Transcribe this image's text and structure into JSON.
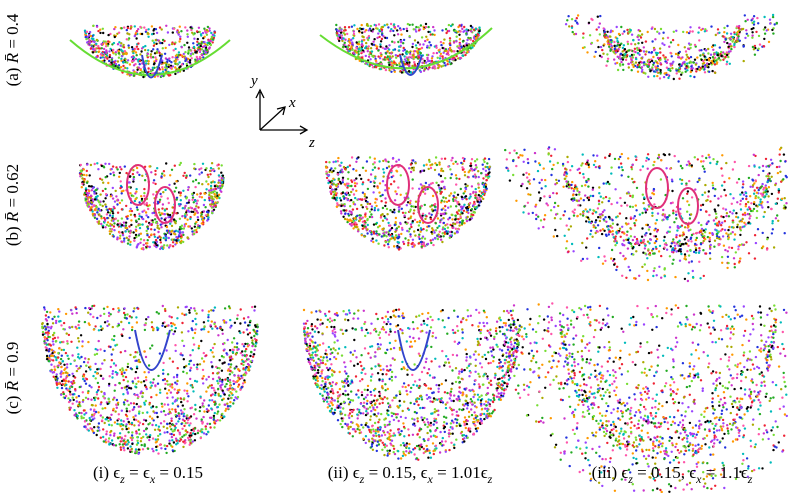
{
  "rows": [
    {
      "prefix": "(a) ",
      "symbol": "R̄",
      "rest": " = 0.4"
    },
    {
      "prefix": "(b) ",
      "symbol": "R̄",
      "rest": " = 0.62"
    },
    {
      "prefix": "(c) ",
      "symbol": "R̄",
      "rest": " = 0.9"
    }
  ],
  "columns": [
    {
      "runs": [
        {
          "text": "(i) "
        },
        {
          "text": "ϵ"
        },
        {
          "sub": "z"
        },
        {
          "text": " = "
        },
        {
          "text": "ϵ"
        },
        {
          "sub": "x"
        },
        {
          "text": " = 0.15"
        }
      ]
    },
    {
      "runs": [
        {
          "text": "(ii) "
        },
        {
          "text": "ϵ"
        },
        {
          "sub": "z"
        },
        {
          "text": " = 0.15, "
        },
        {
          "text": "ϵ"
        },
        {
          "sub": "x"
        },
        {
          "text": " = 1.01"
        },
        {
          "text": "ϵ"
        },
        {
          "sub": "z"
        }
      ]
    },
    {
      "runs": [
        {
          "text": "(iii) "
        },
        {
          "text": "ϵ"
        },
        {
          "sub": "z"
        },
        {
          "text": " = 0.15, "
        },
        {
          "text": "ϵ"
        },
        {
          "sub": "x"
        },
        {
          "text": " = 1.1"
        },
        {
          "text": "ϵ"
        },
        {
          "sub": "z"
        }
      ]
    }
  ],
  "axes": {
    "y": "y",
    "x": "x",
    "z": "z"
  }
}
